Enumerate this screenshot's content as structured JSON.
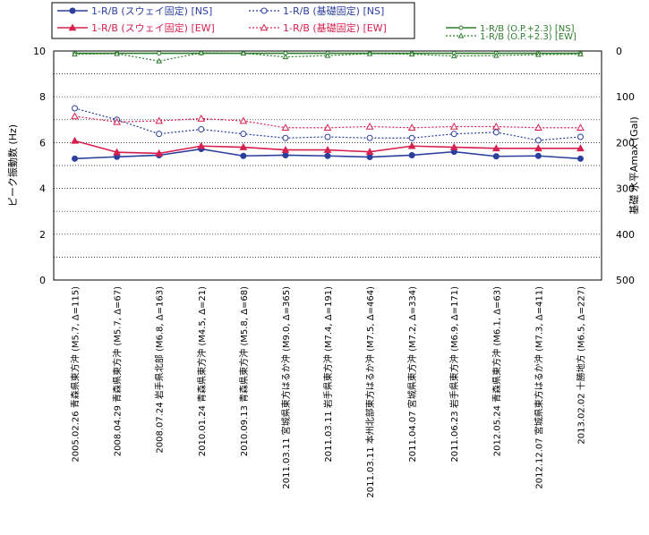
{
  "chart_data": {
    "type": "line",
    "categories": [
      "2005.02.26 青森県東方沖 (M5.7, Δ=115)",
      "2008.04.29 青森県東方沖 (M5.7, Δ=67)",
      "2008.07.24 岩手県北部 (M6.8, Δ=163)",
      "2010.01.24 青森県東方沖 (M4.5, Δ=21)",
      "2010.09.13 青森県東方沖 (M5.8, Δ=68)",
      "2011.03.11 宮城県東方はるか沖 (M9.0, Δ=365)",
      "2011.03.11 岩手県東方沖 (M7.4, Δ=191)",
      "2011.03.11 本州北部東方はるか沖 (M7.5, Δ=464)",
      "2011.04.07 宮城県東方沖 (M7.2, Δ=334)",
      "2011.06.23 岩手県東方沖 (M6.9, Δ=171)",
      "2012.05.24 青森県東方沖 (M6.1, Δ=63)",
      "2012.12.07 宮城県東方はるか沖 (M7.3, Δ=411)",
      "2013.02.02 十勝地方 (M6.5, Δ=227)"
    ],
    "ylabel": "ピーク振動数 (Hz)",
    "ylim": [
      0,
      10
    ],
    "yticks": [
      "0",
      "2",
      "4",
      "6",
      "8",
      "10"
    ],
    "y2label": "基礎 水平Amax (Gal)",
    "y2lim": [
      0,
      500
    ],
    "y2ticks": [
      "0",
      "100",
      "200",
      "300",
      "400",
      "500"
    ],
    "y2_inverted": true,
    "grid": "horizontal dotted",
    "legend_position": "top",
    "series": [
      {
        "name": "1-R/B (スウェイ固定) [NS]",
        "axis": "left",
        "color": "#2b3f9c",
        "style": "solid",
        "marker": "filled-circle",
        "values": [
          5.3,
          5.38,
          5.45,
          5.72,
          5.42,
          5.45,
          5.42,
          5.37,
          5.45,
          5.6,
          5.4,
          5.42,
          5.3
        ]
      },
      {
        "name": "1-R/B (スウェイ固定) [EW]",
        "axis": "left",
        "color": "#d6204f",
        "style": "solid",
        "marker": "filled-triangle",
        "values": [
          6.08,
          5.58,
          5.53,
          5.85,
          5.8,
          5.68,
          5.68,
          5.6,
          5.85,
          5.8,
          5.75,
          5.75,
          5.75
        ]
      },
      {
        "name": "1-R/B (基礎固定) [NS]",
        "axis": "left",
        "color": "#2b3f9c",
        "style": "dotted",
        "marker": "open-circle",
        "values": [
          7.5,
          7.0,
          6.38,
          6.58,
          6.38,
          6.2,
          6.25,
          6.2,
          6.2,
          6.38,
          6.45,
          6.1,
          6.25
        ]
      },
      {
        "name": "1-R/B (基礎固定) [EW]",
        "axis": "left",
        "color": "#d6204f",
        "style": "dotted",
        "marker": "open-triangle",
        "values": [
          7.15,
          6.9,
          6.95,
          7.05,
          6.95,
          6.65,
          6.65,
          6.7,
          6.65,
          6.7,
          6.7,
          6.65,
          6.65
        ]
      },
      {
        "name": "1-R/B (O.P.+2.3) [NS]",
        "axis": "right",
        "color": "#2e7d2e",
        "style": "solid",
        "marker": "small-open-circle",
        "values": [
          5,
          5,
          5,
          5,
          5,
          5,
          5,
          5,
          5,
          5,
          5,
          5,
          5
        ]
      },
      {
        "name": "1-R/B (O.P.+2.3) [EW]",
        "axis": "right",
        "color": "#2e7d2e",
        "style": "dotted",
        "marker": "small-open-triangle",
        "values": [
          7,
          6,
          22,
          4,
          5,
          13,
          10,
          6,
          7,
          11,
          10,
          8,
          7
        ]
      }
    ]
  }
}
